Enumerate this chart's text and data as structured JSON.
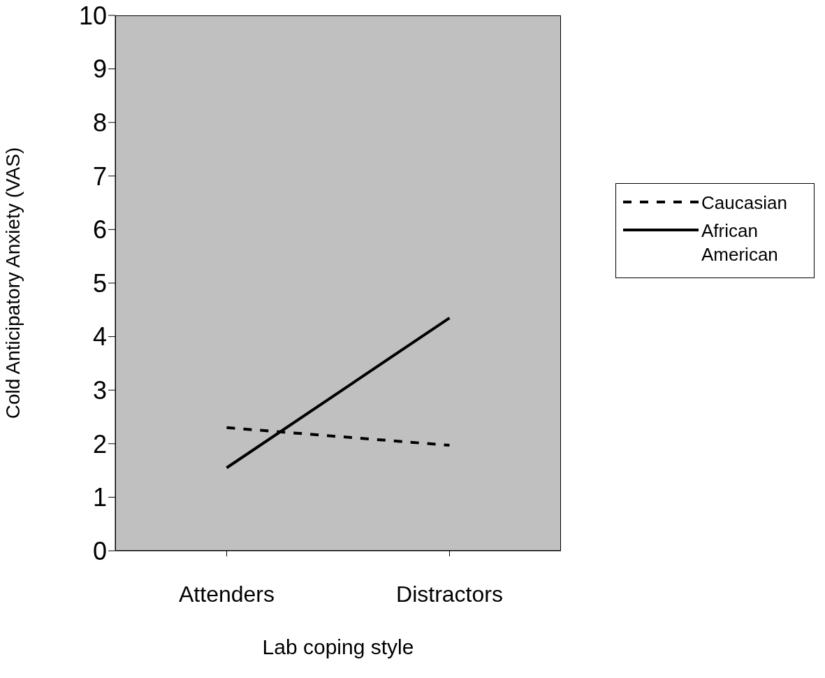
{
  "chart_data": {
    "type": "line",
    "xlabel": "Lab coping style",
    "ylabel": "Cold Anticipatory Anxiety (VAS)",
    "categories": [
      "Attenders",
      "Distractors"
    ],
    "series": [
      {
        "name": "Caucasian",
        "color": "#000000",
        "values": [
          2.3,
          1.97
        ],
        "line_style": "dashed"
      },
      {
        "name": "African American",
        "color": "#000000",
        "values": [
          1.55,
          4.35
        ],
        "line_style": "solid"
      }
    ],
    "ylim": [
      0,
      10
    ],
    "yticks": [
      0,
      1,
      2,
      3,
      4,
      5,
      6,
      7,
      8,
      9,
      10
    ],
    "grid": false,
    "legend": "right",
    "marker": "none"
  }
}
